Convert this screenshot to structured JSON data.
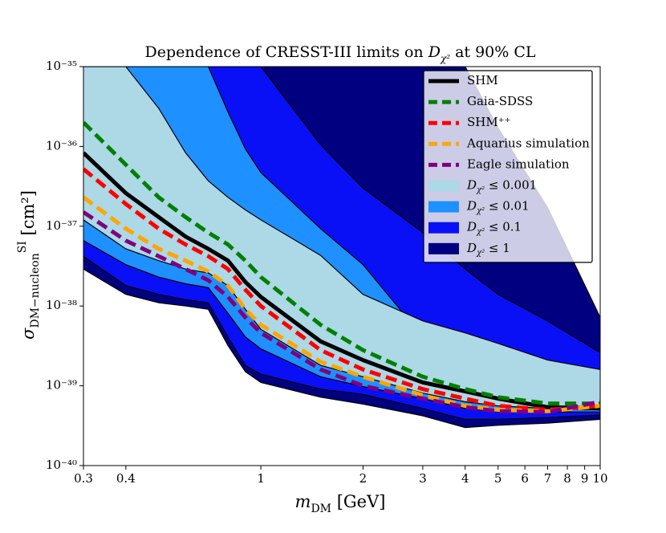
{
  "chart_data": {
    "type": "line",
    "title": {
      "pre": "Dependence of CRESST-III limits on ",
      "symbol": "D",
      "sub": "χ²",
      "post": " at 90% CL"
    },
    "xlabel": {
      "symbol": "m",
      "sub": "DM",
      "unit": " [GeV]"
    },
    "ylabel": {
      "symbol": "σ",
      "sub": "DM−nucleon",
      "sup": "SI",
      "unit": " [cm²]"
    },
    "xscale": "log",
    "yscale": "log",
    "xlim": [
      0.3,
      10
    ],
    "ylim": [
      1e-40,
      1e-35
    ],
    "xticks": [
      0.3,
      0.4,
      1,
      2,
      3,
      4,
      5,
      6,
      7,
      8,
      9,
      10
    ],
    "yticks": [
      {
        "value": 1e-40,
        "label": "10⁻⁴⁰"
      },
      {
        "value": 1e-39,
        "label": "10⁻³⁹"
      },
      {
        "value": 1e-38,
        "label": "10⁻³⁸"
      },
      {
        "value": 1e-37,
        "label": "10⁻³⁷"
      },
      {
        "value": 1e-36,
        "label": "10⁻³⁶"
      },
      {
        "value": 1e-35,
        "label": "10⁻³⁵"
      }
    ],
    "legend": "upper right",
    "x": [
      0.3,
      0.4,
      0.5,
      0.6,
      0.7,
      0.8,
      0.9,
      1,
      1.5,
      2,
      3,
      4,
      5,
      7,
      10
    ],
    "series": [
      {
        "name": "SHM",
        "color": "#000000",
        "linestyle": "solid",
        "values": [
          8.3e-37,
          2.6e-37,
          1.3e-37,
          7.4e-38,
          5.2e-38,
          3.7e-38,
          2e-38,
          1.3e-38,
          3.6e-39,
          2.1e-39,
          1.1e-39,
          8.5e-40,
          6.9e-40,
          5.4e-40,
          5.2e-40
        ]
      },
      {
        "name": "Gaia-SDSS",
        "color": "#008000",
        "linestyle": "dashed",
        "values": [
          2e-36,
          5.9e-37,
          2.3e-37,
          1.3e-37,
          8.3e-38,
          5.9e-38,
          3.7e-38,
          2.3e-38,
          5.8e-39,
          2.8e-39,
          1.3e-39,
          9.1e-40,
          7.2e-40,
          6e-40,
          6e-40
        ]
      },
      {
        "name": "SHM⁺⁺",
        "color": "#ff0000",
        "linestyle": "dashed",
        "values": [
          5.2e-37,
          1.9e-37,
          9.3e-38,
          5.9e-38,
          4.2e-38,
          2.9e-38,
          1.6e-38,
          1e-38,
          2.8e-39,
          1.6e-39,
          9.1e-40,
          6.9e-40,
          5.6e-40,
          5e-40,
          5.6e-40
        ]
      },
      {
        "name": "Aquarius simulation",
        "color": "#ffa500",
        "linestyle": "dashed",
        "values": [
          2.3e-37,
          9.3e-38,
          5.2e-38,
          3.7e-38,
          2.7e-38,
          1.8e-38,
          9.1e-39,
          5.8e-39,
          2e-39,
          1.3e-39,
          7.6e-40,
          5.6e-40,
          5e-40,
          4.8e-40,
          5.6e-40
        ]
      },
      {
        "name": "Eagle simulation",
        "color": "#800080",
        "linestyle": "dashed",
        "values": [
          1.5e-37,
          6.6e-38,
          4.2e-38,
          2.9e-38,
          2.1e-38,
          1.3e-38,
          7.2e-39,
          4.6e-39,
          1.6e-39,
          1e-39,
          6.9e-40,
          5.4e-40,
          4.8e-40,
          4.7e-40,
          6.3e-40
        ]
      }
    ],
    "regions": [
      {
        "name": {
          "symbol": "D",
          "sub": "χ²",
          "rel": " ≤ 0.001"
        },
        "color": "#add8e6",
        "lower": [
          1.2e-37,
          5.2e-38,
          3.7e-38,
          2.9e-38,
          2.6e-38,
          1.8e-38,
          9.1e-39,
          5.1e-39,
          1.8e-39,
          1.3e-39,
          8.1e-40,
          6.3e-40,
          5.6e-40,
          5.2e-40,
          5e-40
        ],
        "upper": [
          1e-35,
          1e-35,
          3e-36,
          8.3e-37,
          3.7e-37,
          2.3e-37,
          1.6e-37,
          1.2e-37,
          4.3e-38,
          1.4e-38,
          6.5e-39,
          4.6e-39,
          3.4e-39,
          2.1e-39,
          1.6e-39
        ]
      },
      {
        "name": {
          "symbol": "D",
          "sub": "χ²",
          "rel": " ≤ 0.01"
        },
        "color": "#1e90ff",
        "lower": [
          6.6e-38,
          3.3e-38,
          2.3e-38,
          1.9e-38,
          1.7e-38,
          8.1e-39,
          4.1e-39,
          2.9e-39,
          1.3e-39,
          9.8e-40,
          6.9e-40,
          5.2e-40,
          4.8e-40,
          4.7e-40,
          4.7e-40
        ],
        "upper": [
          1e-35,
          1e-35,
          1e-35,
          1e-35,
          1e-35,
          2.7e-36,
          9.3e-37,
          4.7e-37,
          9.3e-38,
          3.3e-38,
          4.1e-39,
          2.6e-39,
          1.8e-39,
          1.4e-39,
          1.2e-39
        ]
      },
      {
        "name": {
          "symbol": "D",
          "sub": "χ²",
          "rel": " ≤ 0.1"
        },
        "color": "#0a10f5",
        "lower": [
          4.2e-38,
          1.8e-38,
          1.4e-38,
          1.2e-38,
          1.1e-38,
          4.1e-39,
          1.8e-39,
          1.4e-39,
          9.1e-40,
          7.8e-40,
          5.2e-40,
          3.8e-40,
          3.8e-40,
          4e-40,
          4.3e-40
        ],
        "upper": [
          1e-35,
          1e-35,
          1e-35,
          1e-35,
          1e-35,
          1e-35,
          1e-35,
          1e-35,
          1.05e-36,
          3e-37,
          8.3e-38,
          2.9e-38,
          1.4e-38,
          6.5e-39,
          2.6e-39
        ]
      },
      {
        "name": {
          "symbol": "D",
          "sub": "χ²",
          "rel": " ≤ 1"
        },
        "color": "#000080",
        "lower": [
          2.9e-38,
          1.4e-38,
          1.1e-38,
          1e-38,
          9.1e-39,
          3.2e-39,
          1.5e-39,
          1.1e-39,
          7.2e-40,
          5.9e-40,
          4.2e-40,
          3e-40,
          3.2e-40,
          3.4e-40,
          3.8e-40
        ],
        "upper": [
          1e-35,
          1e-35,
          1e-35,
          1e-35,
          1e-35,
          1e-35,
          1e-35,
          1e-35,
          1e-35,
          1e-35,
          1e-35,
          1e-35,
          1.7e-36,
          1.7e-37,
          7.2e-39
        ]
      }
    ]
  }
}
